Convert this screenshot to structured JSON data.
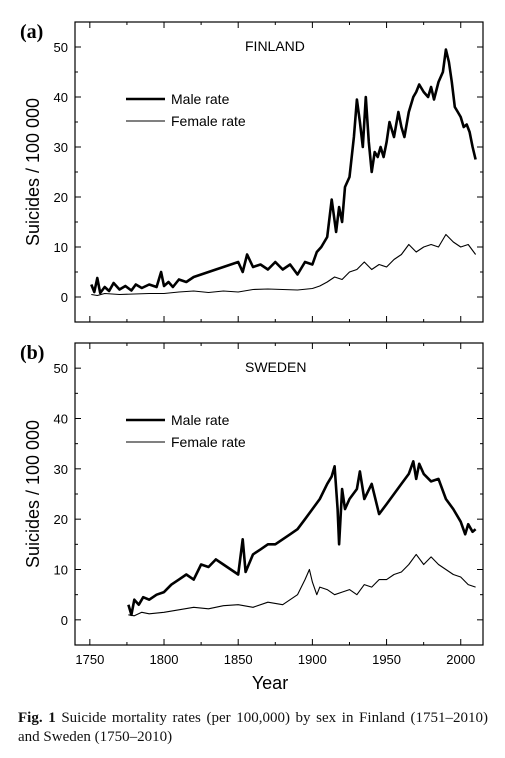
{
  "figure": {
    "caption_label": "Fig. 1",
    "caption_text": " Suicide mortality rates (per 100,000) by sex in Finland (1751–2010) and Sweden (1750–2010)"
  },
  "chart_data": [
    {
      "type": "line",
      "panel_label": "(a)",
      "title": "FINLAND",
      "xlabel": "",
      "ylabel": "Suicides / 100 000",
      "xlim": [
        1740,
        2015
      ],
      "ylim": [
        -5,
        55
      ],
      "yticks": [
        0,
        10,
        20,
        30,
        40,
        50
      ],
      "xticks": [
        1750,
        1800,
        1850,
        1900,
        1950,
        2000
      ],
      "legend_position": "upper-left",
      "series": [
        {
          "name": "Male rate",
          "x": [
            1751,
            1753,
            1755,
            1757,
            1760,
            1763,
            1766,
            1770,
            1774,
            1778,
            1781,
            1785,
            1790,
            1795,
            1798,
            1800,
            1803,
            1806,
            1810,
            1815,
            1820,
            1825,
            1830,
            1835,
            1840,
            1845,
            1850,
            1853,
            1856,
            1860,
            1865,
            1870,
            1875,
            1880,
            1885,
            1890,
            1895,
            1900,
            1903,
            1906,
            1910,
            1913,
            1916,
            1918,
            1920,
            1922,
            1925,
            1928,
            1930,
            1932,
            1934,
            1936,
            1938,
            1940,
            1942,
            1944,
            1946,
            1948,
            1950,
            1952,
            1955,
            1958,
            1960,
            1962,
            1965,
            1968,
            1970,
            1972,
            1975,
            1978,
            1980,
            1982,
            1985,
            1988,
            1990,
            1992,
            1994,
            1996,
            1998,
            2000,
            2002,
            2004,
            2006,
            2008,
            2010
          ],
          "y": [
            2.5,
            1.0,
            3.8,
            0.8,
            2.0,
            1.2,
            2.8,
            1.5,
            2.2,
            1.3,
            2.5,
            1.8,
            2.5,
            2.0,
            5.0,
            2.2,
            3.0,
            2.0,
            3.5,
            3.0,
            4.0,
            4.5,
            5.0,
            5.5,
            6.0,
            6.5,
            7.0,
            5.0,
            8.5,
            6.0,
            6.5,
            5.5,
            7.0,
            5.5,
            6.5,
            4.5,
            7.0,
            6.5,
            9.0,
            10.0,
            12.0,
            19.5,
            13.0,
            18.0,
            15.0,
            22.0,
            24.0,
            32.0,
            39.5,
            35.0,
            30.0,
            40.0,
            31.0,
            25.0,
            29.0,
            28.0,
            30.0,
            28.0,
            31.0,
            35.0,
            32.0,
            37.0,
            34.0,
            32.0,
            37.0,
            40.0,
            41.0,
            42.5,
            41.0,
            40.0,
            42.0,
            39.5,
            43.0,
            45.0,
            49.5,
            47.0,
            43.0,
            38.0,
            37.0,
            36.0,
            34.0,
            34.5,
            33.0,
            30.0,
            27.5
          ]
        },
        {
          "name": "Female rate",
          "x": [
            1751,
            1755,
            1760,
            1770,
            1780,
            1790,
            1800,
            1810,
            1820,
            1830,
            1840,
            1850,
            1860,
            1870,
            1880,
            1890,
            1900,
            1905,
            1910,
            1915,
            1920,
            1925,
            1930,
            1935,
            1940,
            1945,
            1950,
            1955,
            1960,
            1965,
            1970,
            1975,
            1980,
            1985,
            1990,
            1995,
            2000,
            2005,
            2010
          ],
          "y": [
            0.5,
            0.3,
            0.7,
            0.5,
            0.6,
            0.7,
            0.7,
            1.0,
            1.2,
            0.9,
            1.2,
            1.0,
            1.5,
            1.6,
            1.5,
            1.4,
            1.7,
            2.2,
            3.0,
            4.0,
            3.5,
            5.0,
            5.5,
            7.0,
            5.5,
            6.5,
            6.0,
            7.5,
            8.5,
            10.5,
            9.0,
            10.0,
            10.5,
            10.0,
            12.5,
            11.0,
            10.0,
            10.5,
            8.5
          ]
        }
      ]
    },
    {
      "type": "line",
      "panel_label": "(b)",
      "title": "SWEDEN",
      "xlabel": "Year",
      "ylabel": "Suicides / 100 000",
      "xlim": [
        1740,
        2015
      ],
      "ylim": [
        -5,
        55
      ],
      "yticks": [
        0,
        10,
        20,
        30,
        40,
        50
      ],
      "xticks": [
        1750,
        1800,
        1850,
        1900,
        1950,
        2000
      ],
      "xticklabels": [
        "1750",
        "1800",
        "1850",
        "1900",
        "1950",
        "2000"
      ],
      "legend_position": "upper-left",
      "series": [
        {
          "name": "Male rate",
          "x": [
            1776,
            1778,
            1780,
            1783,
            1786,
            1790,
            1795,
            1800,
            1805,
            1810,
            1815,
            1820,
            1825,
            1830,
            1835,
            1840,
            1845,
            1850,
            1853,
            1855,
            1860,
            1865,
            1870,
            1875,
            1880,
            1885,
            1890,
            1895,
            1900,
            1905,
            1910,
            1913,
            1915,
            1917,
            1918,
            1920,
            1922,
            1925,
            1930,
            1932,
            1935,
            1940,
            1945,
            1950,
            1955,
            1960,
            1965,
            1968,
            1970,
            1972,
            1975,
            1980,
            1985,
            1990,
            1995,
            2000,
            2003,
            2005,
            2008,
            2010
          ],
          "y": [
            3.0,
            1.0,
            4.0,
            3.0,
            4.5,
            4.0,
            5.0,
            5.5,
            7.0,
            8.0,
            9.0,
            8.0,
            11.0,
            10.5,
            12.0,
            11.0,
            10.0,
            9.0,
            16.0,
            9.5,
            13.0,
            14.0,
            15.0,
            15.0,
            16.0,
            17.0,
            18.0,
            20.0,
            22.0,
            24.0,
            27.0,
            28.5,
            30.5,
            22.0,
            15.0,
            26.0,
            22.0,
            24.0,
            26.0,
            29.5,
            24.0,
            27.0,
            21.0,
            23.0,
            25.0,
            27.0,
            29.0,
            31.5,
            28.0,
            31.0,
            29.0,
            27.5,
            28.0,
            24.0,
            22.0,
            19.5,
            17.0,
            19.0,
            17.5,
            18.0
          ]
        },
        {
          "name": "Female rate",
          "x": [
            1776,
            1780,
            1785,
            1790,
            1800,
            1810,
            1820,
            1830,
            1840,
            1850,
            1860,
            1870,
            1880,
            1885,
            1890,
            1895,
            1898,
            1900,
            1903,
            1905,
            1910,
            1915,
            1920,
            1925,
            1930,
            1935,
            1940,
            1945,
            1950,
            1955,
            1960,
            1965,
            1970,
            1975,
            1980,
            1985,
            1990,
            1995,
            2000,
            2005,
            2010
          ],
          "y": [
            1.0,
            0.8,
            1.5,
            1.2,
            1.5,
            2.0,
            2.5,
            2.2,
            2.8,
            3.0,
            2.5,
            3.5,
            3.0,
            4.0,
            5.0,
            8.0,
            10.0,
            7.5,
            5.0,
            6.5,
            6.0,
            5.0,
            5.5,
            6.0,
            5.0,
            7.0,
            6.5,
            8.0,
            8.0,
            9.0,
            9.5,
            11.0,
            13.0,
            11.0,
            12.5,
            11.0,
            10.0,
            9.0,
            8.5,
            7.0,
            6.5
          ]
        }
      ]
    }
  ]
}
